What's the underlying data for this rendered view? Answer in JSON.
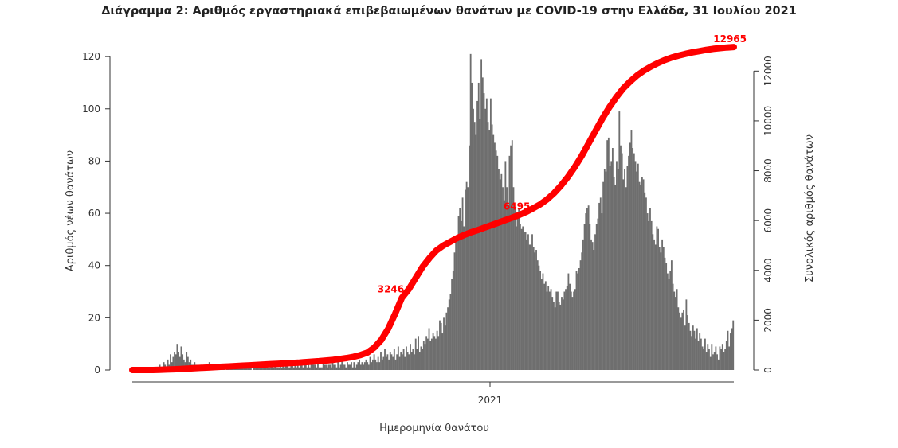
{
  "chart_data": {
    "type": "bar",
    "title": "Διάγραμμα 2: Αριθμός εργαστηριακά επιβεβαιωμένων θανάτων με COVID-19 στην Ελλάδα, 31 Ιουλίου 2021",
    "xlabel": "Ημερομηνία θανάτου",
    "ylabel": "Αριθμός νέων θανάτων",
    "y2label": "Συνολικός αριθμός θανάτων",
    "x_tick_labels": [
      "2021"
    ],
    "y_ticks": [
      0,
      20,
      40,
      60,
      80,
      100,
      120
    ],
    "y2_ticks": [
      0,
      2000,
      4000,
      6000,
      8000,
      10000,
      12000
    ],
    "ylim": [
      0,
      124
    ],
    "y2lim": [
      0,
      13000
    ],
    "bar_color": "#6e6e6e",
    "line_color": "#ff0000",
    "line_annotations": [
      "3246",
      "6495",
      "12965"
    ],
    "series": [
      {
        "name": "",
        "values": [
          0,
          0,
          0,
          0,
          0,
          0,
          0,
          0,
          0,
          0,
          0,
          0,
          0,
          0,
          0,
          0,
          0,
          0,
          1,
          0,
          2,
          1,
          0,
          3,
          2,
          1,
          4,
          2,
          6,
          3,
          5,
          7,
          6,
          10,
          7,
          5,
          9,
          6,
          4,
          3,
          7,
          5,
          3,
          4,
          2,
          2,
          3,
          2,
          2,
          1,
          1,
          2,
          1,
          2,
          2,
          1,
          1,
          3,
          1,
          2,
          1,
          1,
          2,
          1,
          1,
          0,
          2,
          1,
          2,
          0,
          1,
          1,
          2,
          1,
          1,
          1,
          1,
          1,
          1,
          2,
          1,
          1,
          1,
          1,
          1,
          2,
          1,
          1,
          2,
          0,
          1,
          1,
          1,
          1,
          1,
          2,
          1,
          1,
          1,
          1,
          2,
          1,
          1,
          2,
          2,
          1,
          2,
          1,
          1,
          1,
          2,
          1,
          2,
          1,
          2,
          2,
          1,
          1,
          2,
          2,
          1,
          2,
          1,
          2,
          1,
          3,
          2,
          1,
          2,
          2,
          1,
          3,
          1,
          2,
          2,
          2,
          2,
          1,
          3,
          1,
          1,
          1,
          3,
          2,
          2,
          1,
          2,
          2,
          1,
          3,
          2,
          2,
          1,
          3,
          1,
          2,
          4,
          2,
          2,
          1,
          3,
          2,
          2,
          3,
          1,
          3,
          1,
          2,
          3,
          4,
          2,
          3,
          2,
          3,
          4,
          3,
          2,
          5,
          3,
          4,
          6,
          4,
          3,
          5,
          3,
          7,
          4,
          5,
          8,
          5,
          6,
          4,
          7,
          6,
          5,
          8,
          4,
          6,
          9,
          5,
          7,
          6,
          8,
          5,
          9,
          7,
          6,
          10,
          7,
          8,
          6,
          12,
          8,
          13,
          7,
          9,
          8,
          11,
          10,
          13,
          12,
          16,
          11,
          12,
          14,
          13,
          12,
          15,
          13,
          19,
          18,
          14,
          20,
          17,
          22,
          24,
          27,
          29,
          35,
          38,
          45,
          49,
          51,
          59,
          62,
          57,
          66,
          55,
          69,
          72,
          70,
          86,
          121,
          110,
          100,
          95,
          90,
          103,
          110,
          96,
          119,
          112,
          106,
          100,
          104,
          95,
          92,
          104,
          94,
          90,
          87,
          84,
          82,
          77,
          73,
          75,
          70,
          65,
          80,
          70,
          62,
          82,
          86,
          88,
          70,
          62,
          55,
          58,
          62,
          56,
          54,
          55,
          53,
          53,
          50,
          52,
          48,
          48,
          52,
          47,
          45,
          46,
          42,
          40,
          38,
          35,
          37,
          33,
          34,
          30,
          32,
          30,
          31,
          28,
          26,
          24,
          30,
          30,
          26,
          25,
          28,
          27,
          30,
          31,
          32,
          37,
          33,
          30,
          28,
          30,
          31,
          38,
          37,
          39,
          42,
          45,
          50,
          56,
          60,
          62,
          63,
          56,
          50,
          49,
          46,
          52,
          56,
          58,
          64,
          66,
          60,
          72,
          77,
          76,
          88,
          89,
          78,
          80,
          85,
          74,
          71,
          80,
          77,
          99,
          86,
          83,
          73,
          77,
          70,
          78,
          82,
          87,
          92,
          85,
          83,
          80,
          76,
          79,
          72,
          71,
          74,
          73,
          68,
          66,
          60,
          57,
          62,
          57,
          52,
          50,
          48,
          55,
          54,
          47,
          45,
          50,
          47,
          43,
          41,
          37,
          35,
          38,
          42,
          33,
          30,
          28,
          31,
          24,
          22,
          20,
          22,
          23,
          17,
          27,
          21,
          18,
          15,
          13,
          17,
          15,
          12,
          16,
          11,
          14,
          12,
          9,
          8,
          12,
          7,
          10,
          8,
          5,
          10,
          6,
          7,
          9,
          6,
          4,
          9,
          8,
          10,
          7,
          8,
          11,
          15,
          9,
          14,
          16,
          19
        ]
      }
    ],
    "cumulative_line": {
      "name": "",
      "values": [
        0,
        0,
        0,
        0,
        10,
        20,
        30,
        40,
        55,
        70,
        85,
        100,
        115,
        130,
        145,
        160,
        175,
        190,
        205,
        220,
        235,
        250,
        265,
        280,
        295,
        315,
        335,
        355,
        380,
        405,
        440,
        480,
        530,
        600,
        700,
        900,
        1200,
        1650,
        2250,
        2900,
        3246,
        3700,
        4150,
        4500,
        4800,
        5000,
        5150,
        5300,
        5420,
        5530,
        5620,
        5720,
        5820,
        5920,
        6020,
        6120,
        6230,
        6350,
        6495,
        6650,
        6850,
        7100,
        7400,
        7750,
        8150,
        8600,
        9100,
        9600,
        10100,
        10550,
        10950,
        11300,
        11580,
        11820,
        12020,
        12180,
        12320,
        12440,
        12540,
        12620,
        12690,
        12750,
        12800,
        12850,
        12890,
        12920,
        12945,
        12965
      ]
    }
  }
}
